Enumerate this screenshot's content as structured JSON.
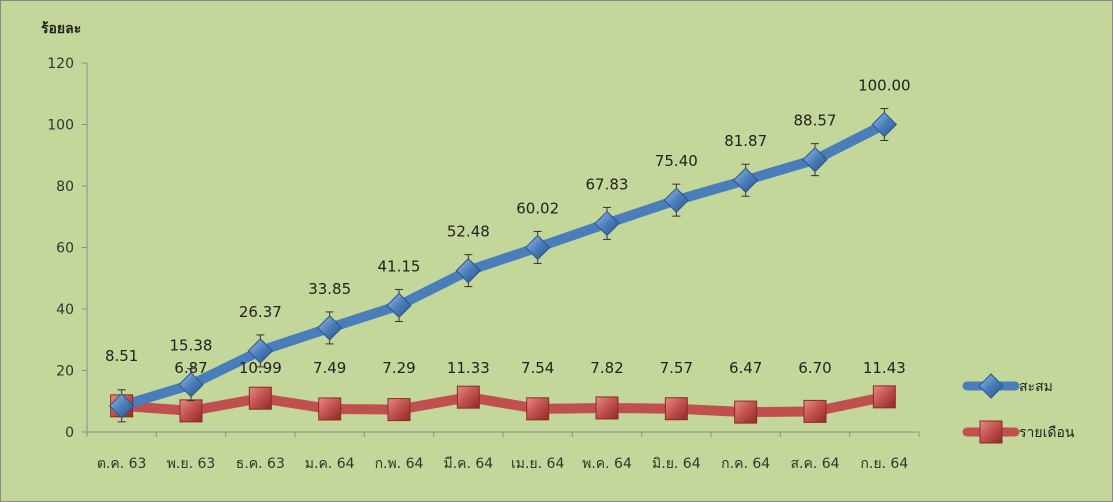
{
  "chart_data": {
    "type": "line",
    "ylabel": "ร้อยละ",
    "xlabel": "",
    "ylim": [
      0,
      120
    ],
    "y_ticks": [
      0,
      20,
      40,
      60,
      80,
      100,
      120
    ],
    "categories": [
      "ต.ค. 63",
      "พ.ย. 63",
      "ธ.ค. 63",
      "ม.ค. 64",
      "ก.พ. 64",
      "มี.ค. 64",
      "เม.ย. 64",
      "พ.ค. 64",
      "มิ.ย. 64",
      "ก.ค. 64",
      "ส.ค. 64",
      "ก.ย. 64"
    ],
    "series": [
      {
        "name": "สะสม",
        "color": "#4a7ebb",
        "marker": "diamond",
        "values": [
          8.51,
          15.38,
          26.37,
          33.85,
          41.15,
          52.48,
          60.02,
          67.83,
          75.4,
          81.87,
          88.57,
          100.0
        ],
        "labels": [
          "",
          "15.38",
          "26.37",
          "33.85",
          "41.15",
          "52.48",
          "60.02",
          "67.83",
          "75.40",
          "81.87",
          "88.57",
          "100.00"
        ]
      },
      {
        "name": "รายเดือน",
        "color": "#c0504d",
        "marker": "square",
        "values": [
          8.51,
          6.87,
          10.99,
          7.49,
          7.29,
          11.33,
          7.54,
          7.82,
          7.57,
          6.47,
          6.7,
          11.43
        ],
        "labels": [
          "8.51",
          "6.87",
          "10.99",
          "7.49",
          "7.29",
          "11.33",
          "7.54",
          "7.82",
          "7.57",
          "6.47",
          "6.70",
          "11.43"
        ]
      }
    ],
    "legend": "right",
    "grid": false
  }
}
